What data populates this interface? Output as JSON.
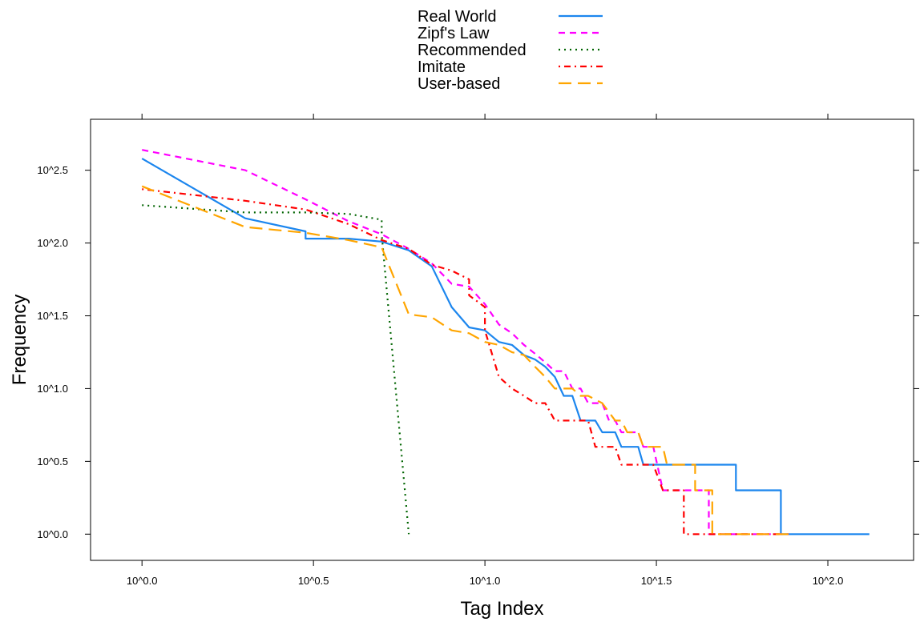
{
  "chart_data": {
    "type": "line",
    "title": "",
    "xlabel": "Tag Index",
    "ylabel": "Frequency",
    "x_scale": "log10",
    "y_scale": "log10",
    "xlim_exponent": [
      -0.15,
      2.25
    ],
    "ylim_exponent": [
      -0.18,
      2.85
    ],
    "x_ticks": [
      0.0,
      0.5,
      1.0,
      1.5,
      2.0
    ],
    "y_ticks": [
      0.0,
      0.5,
      1.0,
      1.5,
      2.0,
      2.5
    ],
    "x_tick_labels": [
      "10^0.0",
      "10^0.5",
      "10^1.0",
      "10^1.5",
      "10^2.0"
    ],
    "y_tick_labels": [
      "10^0.0",
      "10^0.5",
      "10^1.0",
      "10^1.5",
      "10^2.0",
      "10^2.5"
    ],
    "legend_position": "top",
    "grid": false,
    "series": [
      {
        "name": "Real World",
        "color": "#1c86ee",
        "dash": "solid",
        "points": [
          [
            0.0,
            2.58
          ],
          [
            0.301,
            2.17
          ],
          [
            0.477,
            2.08
          ],
          [
            0.477,
            2.03
          ],
          [
            0.602,
            2.03
          ],
          [
            0.699,
            2.01
          ],
          [
            0.778,
            1.95
          ],
          [
            0.845,
            1.84
          ],
          [
            0.903,
            1.56
          ],
          [
            0.954,
            1.42
          ],
          [
            1.0,
            1.4
          ],
          [
            1.041,
            1.32
          ],
          [
            1.079,
            1.3
          ],
          [
            1.114,
            1.23
          ],
          [
            1.146,
            1.2
          ],
          [
            1.176,
            1.15
          ],
          [
            1.204,
            1.08
          ],
          [
            1.23,
            0.95
          ],
          [
            1.255,
            0.95
          ],
          [
            1.279,
            0.78
          ],
          [
            1.322,
            0.78
          ],
          [
            1.342,
            0.7
          ],
          [
            1.38,
            0.7
          ],
          [
            1.398,
            0.6
          ],
          [
            1.447,
            0.6
          ],
          [
            1.462,
            0.477
          ],
          [
            1.732,
            0.477
          ],
          [
            1.732,
            0.301
          ],
          [
            1.863,
            0.301
          ],
          [
            1.863,
            0.0
          ],
          [
            2.121,
            0.0
          ]
        ]
      },
      {
        "name": "Zipf's Law",
        "color": "#ff00ff",
        "dash": "dashed",
        "points": [
          [
            0.0,
            2.64
          ],
          [
            0.301,
            2.5
          ],
          [
            0.477,
            2.3
          ],
          [
            0.602,
            2.15
          ],
          [
            0.699,
            2.06
          ],
          [
            0.778,
            1.96
          ],
          [
            0.845,
            1.86
          ],
          [
            0.903,
            1.72
          ],
          [
            0.954,
            1.7
          ],
          [
            1.0,
            1.58
          ],
          [
            1.041,
            1.44
          ],
          [
            1.079,
            1.38
          ],
          [
            1.114,
            1.3
          ],
          [
            1.146,
            1.24
          ],
          [
            1.176,
            1.18
          ],
          [
            1.204,
            1.12
          ],
          [
            1.23,
            1.12
          ],
          [
            1.255,
            1.0
          ],
          [
            1.279,
            1.0
          ],
          [
            1.301,
            0.9
          ],
          [
            1.342,
            0.9
          ],
          [
            1.362,
            0.78
          ],
          [
            1.38,
            0.78
          ],
          [
            1.398,
            0.7
          ],
          [
            1.447,
            0.7
          ],
          [
            1.462,
            0.6
          ],
          [
            1.491,
            0.6
          ],
          [
            1.519,
            0.301
          ],
          [
            1.653,
            0.301
          ],
          [
            1.653,
            0.0
          ],
          [
            1.886,
            0.0
          ]
        ]
      },
      {
        "name": "Recommended",
        "color": "#006400",
        "dash": "dotted",
        "points": [
          [
            0.0,
            2.26
          ],
          [
            0.301,
            2.21
          ],
          [
            0.477,
            2.21
          ],
          [
            0.602,
            2.2
          ],
          [
            0.699,
            2.16
          ],
          [
            0.699,
            2.06
          ],
          [
            0.778,
            0.0
          ]
        ]
      },
      {
        "name": "Imitate",
        "color": "#ff0000",
        "dash": "dotdash",
        "points": [
          [
            0.0,
            2.37
          ],
          [
            0.301,
            2.29
          ],
          [
            0.477,
            2.23
          ],
          [
            0.602,
            2.13
          ],
          [
            0.699,
            2.02
          ],
          [
            0.778,
            1.96
          ],
          [
            0.845,
            1.85
          ],
          [
            0.903,
            1.81
          ],
          [
            0.954,
            1.75
          ],
          [
            0.954,
            1.64
          ],
          [
            1.0,
            1.56
          ],
          [
            1.0,
            1.4
          ],
          [
            1.041,
            1.08
          ],
          [
            1.079,
            1.0
          ],
          [
            1.114,
            0.95
          ],
          [
            1.146,
            0.9
          ],
          [
            1.176,
            0.9
          ],
          [
            1.204,
            0.78
          ],
          [
            1.301,
            0.78
          ],
          [
            1.322,
            0.6
          ],
          [
            1.38,
            0.6
          ],
          [
            1.398,
            0.477
          ],
          [
            1.491,
            0.477
          ],
          [
            1.519,
            0.301
          ],
          [
            1.58,
            0.301
          ],
          [
            1.58,
            0.0
          ],
          [
            1.862,
            0.0
          ]
        ]
      },
      {
        "name": "User-based",
        "color": "#ffa500",
        "dash": "longdash",
        "points": [
          [
            0.0,
            2.39
          ],
          [
            0.301,
            2.11
          ],
          [
            0.477,
            2.07
          ],
          [
            0.602,
            2.02
          ],
          [
            0.699,
            1.97
          ],
          [
            0.778,
            1.51
          ],
          [
            0.845,
            1.49
          ],
          [
            0.903,
            1.4
          ],
          [
            0.954,
            1.38
          ],
          [
            1.0,
            1.32
          ],
          [
            1.041,
            1.3
          ],
          [
            1.079,
            1.25
          ],
          [
            1.114,
            1.23
          ],
          [
            1.146,
            1.15
          ],
          [
            1.176,
            1.08
          ],
          [
            1.204,
            1.0
          ],
          [
            1.255,
            1.0
          ],
          [
            1.279,
            0.95
          ],
          [
            1.301,
            0.95
          ],
          [
            1.342,
            0.9
          ],
          [
            1.38,
            0.78
          ],
          [
            1.398,
            0.78
          ],
          [
            1.415,
            0.7
          ],
          [
            1.447,
            0.7
          ],
          [
            1.462,
            0.6
          ],
          [
            1.519,
            0.6
          ],
          [
            1.531,
            0.477
          ],
          [
            1.613,
            0.477
          ],
          [
            1.613,
            0.301
          ],
          [
            1.663,
            0.301
          ],
          [
            1.663,
            0.0
          ],
          [
            1.886,
            0.0
          ]
        ]
      }
    ]
  }
}
